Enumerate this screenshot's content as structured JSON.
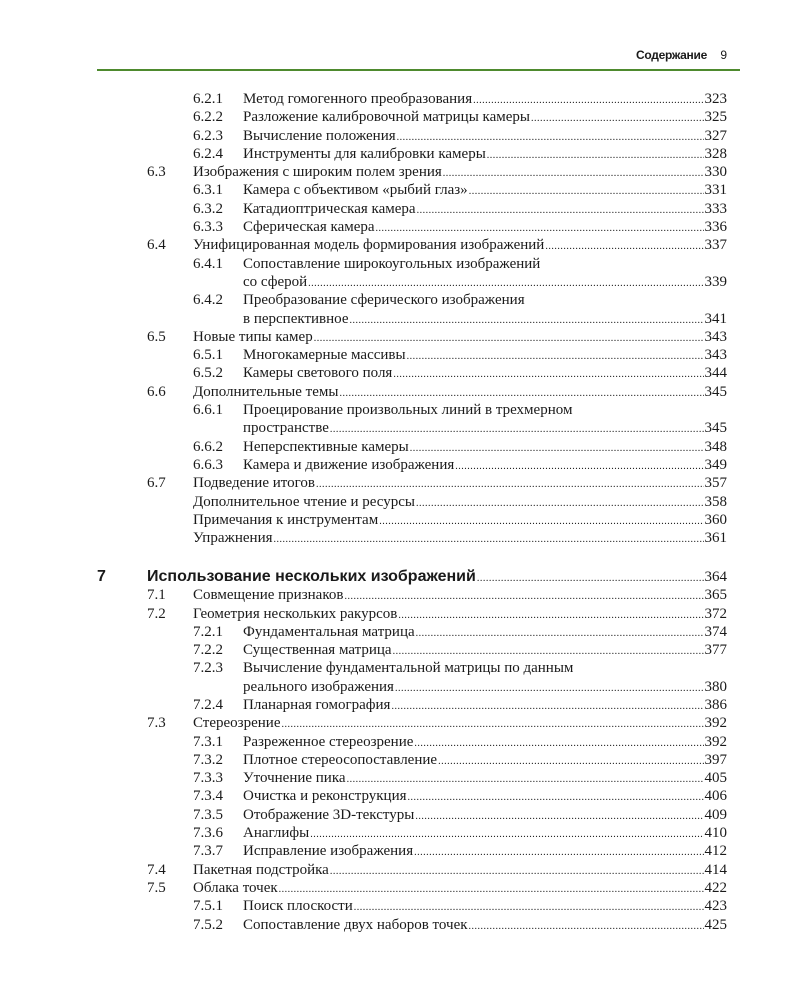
{
  "header": {
    "section": "Содержание",
    "page_number": "9"
  },
  "accent_color": "#4e8a2e",
  "entries": [
    {
      "level": 3,
      "num": "6.2.1",
      "lines": [
        "Метод гомогенного преобразования"
      ],
      "page": "323"
    },
    {
      "level": 3,
      "num": "6.2.2",
      "lines": [
        "Разложение калибровочной матрицы камеры"
      ],
      "page": "325"
    },
    {
      "level": 3,
      "num": "6.2.3",
      "lines": [
        "Вычисление положения"
      ],
      "page": "327"
    },
    {
      "level": 3,
      "num": "6.2.4",
      "lines": [
        "Инструменты для калибровки камеры"
      ],
      "page": "328"
    },
    {
      "level": 2,
      "num": "6.3",
      "lines": [
        "Изображения с широким полем зрения"
      ],
      "page": "330"
    },
    {
      "level": 3,
      "num": "6.3.1",
      "lines": [
        "Камера с объективом «рыбий глаз»"
      ],
      "page": "331"
    },
    {
      "level": 3,
      "num": "6.3.2",
      "lines": [
        "Катадиоптрическая камера"
      ],
      "page": "333"
    },
    {
      "level": 3,
      "num": "6.3.3",
      "lines": [
        "Сферическая камера"
      ],
      "page": "336"
    },
    {
      "level": 2,
      "num": "6.4",
      "lines": [
        "Унифицированная модель формирования изображений"
      ],
      "page": "337"
    },
    {
      "level": 3,
      "num": "6.4.1",
      "lines": [
        "Сопоставление широкоугольных изображений",
        "со сферой"
      ],
      "page": "339"
    },
    {
      "level": 3,
      "num": "6.4.2",
      "lines": [
        "Преобразование сферического изображения",
        "в перспективное"
      ],
      "page": "341"
    },
    {
      "level": 2,
      "num": "6.5",
      "lines": [
        "Новые типы камер"
      ],
      "page": "343"
    },
    {
      "level": 3,
      "num": "6.5.1",
      "lines": [
        "Многокамерные массивы"
      ],
      "page": "343"
    },
    {
      "level": 3,
      "num": "6.5.2",
      "lines": [
        "Камеры светового поля"
      ],
      "page": "344"
    },
    {
      "level": 2,
      "num": "6.6",
      "lines": [
        "Дополнительные темы"
      ],
      "page": "345"
    },
    {
      "level": 3,
      "num": "6.6.1",
      "lines": [
        "Проецирование произвольных линий в трехмерном",
        "пространстве"
      ],
      "page": "345"
    },
    {
      "level": 3,
      "num": "6.6.2",
      "lines": [
        "Неперспективные камеры"
      ],
      "page": "348"
    },
    {
      "level": 3,
      "num": "6.6.3",
      "lines": [
        "Камера и движение изображения"
      ],
      "page": "349"
    },
    {
      "level": 2,
      "num": "6.7",
      "lines": [
        "Подведение итогов"
      ],
      "page": "357"
    },
    {
      "level": 2,
      "num": "",
      "lines": [
        "Дополнительное чтение и ресурсы"
      ],
      "page": "358"
    },
    {
      "level": 2,
      "num": "",
      "lines": [
        "Примечания к инструментам"
      ],
      "page": "360"
    },
    {
      "level": 2,
      "num": "",
      "lines": [
        "Упражнения"
      ],
      "page": "361"
    },
    {
      "level": 1,
      "num": "7",
      "lines": [
        "Использование нескольких изображений"
      ],
      "page": "364"
    },
    {
      "level": 2,
      "num": "7.1",
      "lines": [
        "Совмещение признаков"
      ],
      "page": "365"
    },
    {
      "level": 2,
      "num": "7.2",
      "lines": [
        "Геометрия нескольких ракурсов"
      ],
      "page": "372"
    },
    {
      "level": 3,
      "num": "7.2.1",
      "lines": [
        "Фундаментальная матрица"
      ],
      "page": "374"
    },
    {
      "level": 3,
      "num": "7.2.2",
      "lines": [
        "Существенная матрица"
      ],
      "page": "377"
    },
    {
      "level": 3,
      "num": "7.2.3",
      "lines": [
        "Вычисление фундаментальной матрицы по данным",
        "реального изображения"
      ],
      "page": "380"
    },
    {
      "level": 3,
      "num": "7.2.4",
      "lines": [
        "Планарная гомография"
      ],
      "page": "386"
    },
    {
      "level": 2,
      "num": "7.3",
      "lines": [
        "Стереозрение"
      ],
      "page": "392"
    },
    {
      "level": 3,
      "num": "7.3.1",
      "lines": [
        "Разреженное стереозрение"
      ],
      "page": "392"
    },
    {
      "level": 3,
      "num": "7.3.2",
      "lines": [
        "Плотное стереосопоставление"
      ],
      "page": "397"
    },
    {
      "level": 3,
      "num": "7.3.3",
      "lines": [
        "Уточнение пика"
      ],
      "page": "405"
    },
    {
      "level": 3,
      "num": "7.3.4",
      "lines": [
        "Очистка и реконструкция"
      ],
      "page": "406"
    },
    {
      "level": 3,
      "num": "7.3.5",
      "lines": [
        "Отображение 3D-текстуры"
      ],
      "page": "409"
    },
    {
      "level": 3,
      "num": "7.3.6",
      "lines": [
        "Анаглифы"
      ],
      "page": "410"
    },
    {
      "level": 3,
      "num": "7.3.7",
      "lines": [
        "Исправление изображения"
      ],
      "page": "412"
    },
    {
      "level": 2,
      "num": "7.4",
      "lines": [
        "Пакетная подстройка"
      ],
      "page": "414"
    },
    {
      "level": 2,
      "num": "7.5",
      "lines": [
        "Облака точек"
      ],
      "page": "422"
    },
    {
      "level": 3,
      "num": "7.5.1",
      "lines": [
        "Поиск плоскости"
      ],
      "page": "423"
    },
    {
      "level": 3,
      "num": "7.5.2",
      "lines": [
        "Сопоставление двух наборов точек"
      ],
      "page": "425"
    }
  ]
}
